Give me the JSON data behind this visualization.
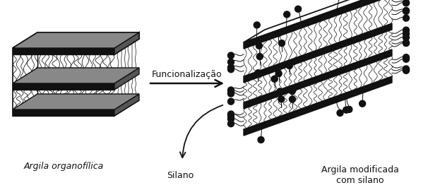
{
  "label_left": "Argila organofílica",
  "label_right": "Argila modificada\ncom silano",
  "label_arrow": "Funcionalização",
  "label_silano": "Silano",
  "bg_color": "#ffffff",
  "layer_color": "#111111",
  "fill_color": "#f0f0f0",
  "text_color": "#111111",
  "figsize": [
    6.23,
    2.69
  ],
  "dpi": 100
}
